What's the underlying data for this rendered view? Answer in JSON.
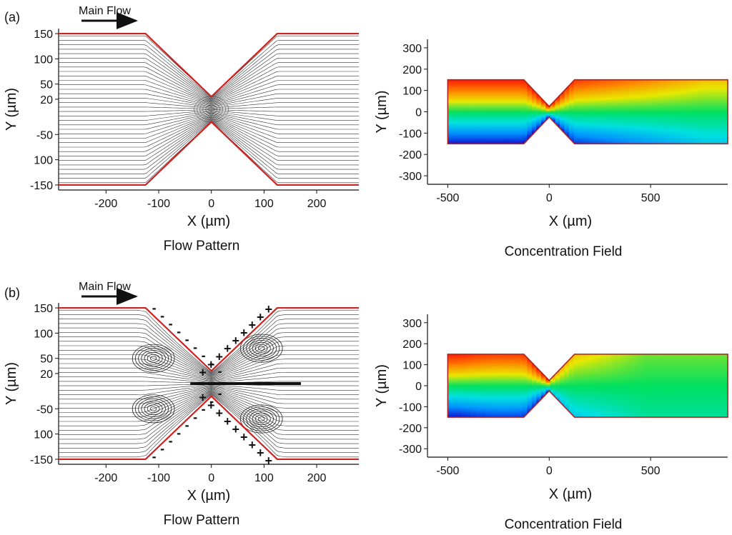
{
  "rows": [
    {
      "panel_label": "(a)",
      "flow_arrow_label": "Main Flow",
      "flow_caption": "Flow Pattern",
      "conc_caption": "Concentration Field",
      "vortices": false,
      "charges": false
    },
    {
      "panel_label": "(b)",
      "flow_arrow_label": "Main Flow",
      "flow_caption": "Flow Pattern",
      "conc_caption": "Concentration Field",
      "vortices": true,
      "charges": true,
      "charge_symbols": {
        "top_left": "-",
        "top_right": "+",
        "bottom_left": "-",
        "bottom_right": "+"
      }
    }
  ],
  "chart_data": [
    {
      "type": "streamline",
      "panel": "(a)",
      "xlabel": "X (µm)",
      "ylabel": "Y (µm)",
      "xlim": [
        -290,
        280
      ],
      "ylim": [
        -160,
        160
      ],
      "x_ticks": [
        "-200",
        "-100",
        "0",
        "100",
        "200"
      ],
      "y_ticks": [
        "150",
        "100",
        "50",
        "20",
        "-50",
        "100",
        "-150"
      ],
      "channel_wall": {
        "half_width": 150,
        "throat_half_width": 25,
        "taper_start_x": -125,
        "taper_end_x": 125
      },
      "wall_color": "#cc2222"
    },
    {
      "type": "heatmap",
      "panel": "(a)",
      "xlabel": "X (µm)",
      "ylabel": "Y (µm)",
      "xlim": [
        -600,
        880
      ],
      "ylim": [
        -340,
        340
      ],
      "x_ticks": [
        "-500",
        "0",
        "500"
      ],
      "y_ticks": [
        "300",
        "200",
        "100",
        "0",
        "-100",
        "-200",
        "-300"
      ],
      "channel_wall": {
        "half_width": 150,
        "throat_half_width": 25,
        "taper_start_x": -125,
        "taper_end_x": 125
      },
      "colormap": [
        "#1010d0",
        "#0090ff",
        "#00e0e0",
        "#00e060",
        "#e8e800",
        "#ff8000",
        "#ff2000"
      ]
    },
    {
      "type": "streamline",
      "panel": "(b)",
      "xlabel": "X (µm)",
      "ylabel": "Y (µm)",
      "xlim": [
        -290,
        280
      ],
      "ylim": [
        -160,
        160
      ],
      "x_ticks": [
        "-200",
        "-100",
        "0",
        "100",
        "200"
      ],
      "y_ticks": [
        "150",
        "100",
        "50",
        "20",
        "-50",
        "100",
        "-150"
      ],
      "channel_wall": {
        "half_width": 150,
        "throat_half_width": 25,
        "taper_start_x": -125,
        "taper_end_x": 125
      },
      "vortex_centers": [
        [
          -110,
          50
        ],
        [
          -110,
          -50
        ],
        [
          95,
          70
        ],
        [
          95,
          -70
        ]
      ],
      "wall_color": "#cc2222"
    },
    {
      "type": "heatmap",
      "panel": "(b)",
      "xlabel": "X (µm)",
      "ylabel": "Y (µm)",
      "xlim": [
        -600,
        880
      ],
      "ylim": [
        -340,
        340
      ],
      "x_ticks": [
        "-500",
        "0",
        "500"
      ],
      "y_ticks": [
        "300",
        "200",
        "100",
        "0",
        "-100",
        "-200",
        "-300"
      ],
      "channel_wall": {
        "half_width": 150,
        "throat_half_width": 25,
        "taper_start_x": -125,
        "taper_end_x": 125
      },
      "colormap": [
        "#1010d0",
        "#0090ff",
        "#00e0e0",
        "#00e060",
        "#e8e800",
        "#ff8000",
        "#ff2000"
      ]
    }
  ]
}
